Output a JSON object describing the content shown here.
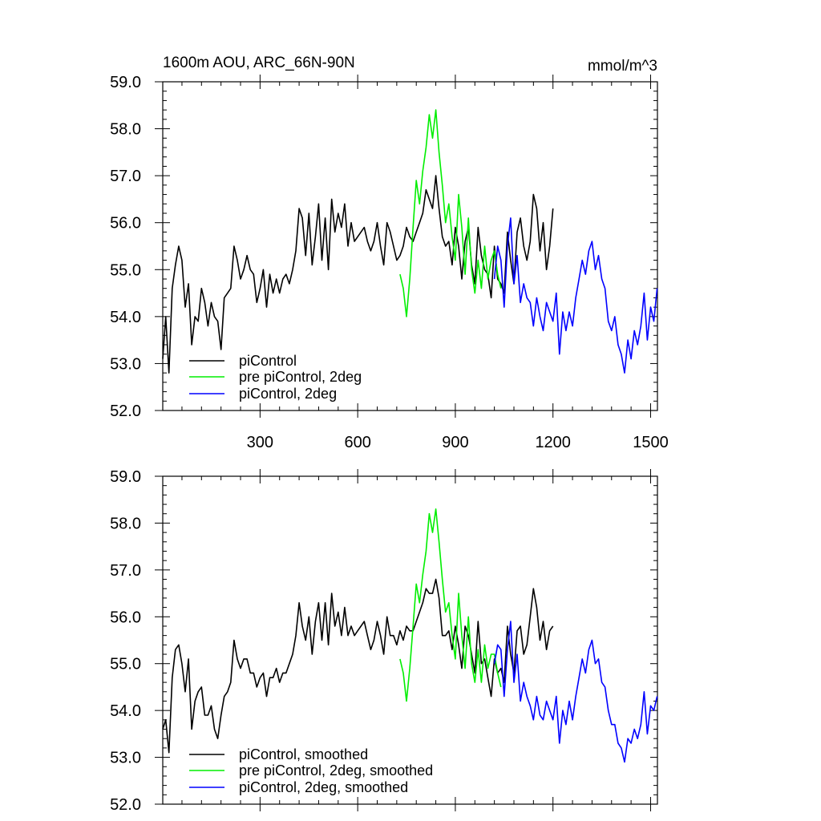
{
  "chart_data": [
    {
      "type": "line",
      "title": "1600m AOU, ARC_66N-90N",
      "units": "mmol/m^3",
      "xlabel": "",
      "ylabel": "",
      "xlim": [
        1,
        1521
      ],
      "ylim": [
        52.0,
        59.0
      ],
      "x_ticks": [
        300,
        600,
        900,
        1200,
        1500
      ],
      "y_ticks": [
        "52.0",
        "53.0",
        "54.0",
        "55.0",
        "56.0",
        "57.0",
        "58.0",
        "59.0"
      ],
      "show_x_tick_labels": true,
      "legend_position": "bottom-left",
      "series": [
        {
          "name": "piControl",
          "color": "#000000",
          "x": [
            1,
            10,
            20,
            30,
            40,
            50,
            60,
            70,
            80,
            90,
            100,
            110,
            120,
            130,
            140,
            150,
            160,
            170,
            180,
            190,
            200,
            210,
            220,
            230,
            240,
            250,
            260,
            270,
            280,
            290,
            300,
            310,
            320,
            330,
            340,
            350,
            360,
            370,
            380,
            390,
            400,
            410,
            420,
            430,
            440,
            450,
            460,
            470,
            480,
            490,
            500,
            510,
            520,
            530,
            540,
            550,
            560,
            570,
            580,
            590,
            600,
            610,
            620,
            630,
            640,
            650,
            660,
            670,
            680,
            690,
            700,
            710,
            720,
            730,
            740,
            750,
            760,
            770,
            780,
            790,
            800,
            810,
            820,
            830,
            840,
            850,
            860,
            870,
            880,
            890,
            900,
            910,
            920,
            930,
            940,
            950,
            960,
            970,
            980,
            990,
            1000,
            1010,
            1020,
            1030,
            1040,
            1050,
            1060,
            1070,
            1080,
            1090,
            1100,
            1110,
            1120,
            1130,
            1140,
            1150,
            1160,
            1170,
            1180,
            1190,
            1200
          ],
          "y": [
            53.1,
            54.0,
            52.8,
            54.6,
            55.1,
            55.5,
            55.2,
            54.2,
            54.7,
            53.4,
            54.0,
            53.9,
            54.6,
            54.3,
            53.8,
            54.3,
            54.0,
            53.9,
            53.3,
            54.4,
            54.5,
            54.6,
            55.5,
            55.2,
            54.8,
            55.0,
            55.3,
            55.0,
            54.9,
            54.3,
            54.6,
            55.0,
            54.2,
            54.9,
            54.5,
            54.8,
            54.5,
            54.8,
            54.9,
            54.7,
            55.0,
            55.4,
            56.3,
            56.1,
            55.3,
            56.2,
            55.1,
            55.7,
            56.4,
            55.2,
            56.1,
            55.0,
            56.5,
            55.8,
            56.2,
            55.9,
            56.4,
            55.5,
            56.0,
            55.6,
            55.7,
            55.8,
            55.9,
            55.6,
            55.4,
            55.6,
            56.0,
            55.5,
            55.1,
            56.0,
            55.8,
            55.5,
            55.2,
            55.3,
            55.5,
            55.9,
            55.7,
            55.6,
            55.8,
            56.0,
            56.2,
            56.7,
            56.5,
            56.3,
            57.0,
            56.3,
            55.7,
            55.5,
            55.6,
            55.1,
            55.9,
            55.5,
            54.8,
            55.6,
            55.9,
            55.1,
            54.7,
            55.9,
            55.3,
            55.0,
            54.9,
            54.4,
            55.5,
            54.8,
            54.7,
            54.5,
            55.8,
            55.2,
            54.7,
            55.8,
            56.1,
            55.5,
            55.2,
            55.6,
            56.6,
            56.3,
            55.4,
            56.0,
            55.0,
            55.5,
            56.3
          ]
        },
        {
          "name": "pre piControl, 2deg",
          "color": "#00ee00",
          "x": [
            730,
            740,
            750,
            760,
            770,
            780,
            790,
            800,
            810,
            820,
            830,
            840,
            850,
            860,
            870,
            880,
            890,
            900,
            910,
            920,
            930,
            940,
            950,
            960,
            970,
            980,
            990,
            1000,
            1010,
            1020,
            1030,
            1040
          ],
          "y": [
            54.9,
            54.6,
            54.0,
            54.8,
            55.9,
            56.9,
            56.4,
            57.1,
            57.6,
            58.3,
            57.8,
            58.4,
            57.5,
            56.8,
            56.0,
            56.4,
            55.7,
            55.2,
            56.6,
            55.9,
            54.9,
            56.1,
            55.0,
            54.5,
            55.2,
            54.6,
            55.5,
            54.8,
            55.2,
            55.4,
            54.9,
            54.6
          ]
        },
        {
          "name": "piControl, 2deg",
          "color": "#0000ff",
          "x": [
            1020,
            1030,
            1040,
            1050,
            1060,
            1070,
            1080,
            1090,
            1100,
            1110,
            1120,
            1130,
            1140,
            1150,
            1160,
            1170,
            1180,
            1190,
            1200,
            1210,
            1220,
            1230,
            1240,
            1250,
            1260,
            1270,
            1280,
            1290,
            1300,
            1310,
            1320,
            1330,
            1340,
            1350,
            1360,
            1370,
            1380,
            1390,
            1400,
            1410,
            1420,
            1430,
            1440,
            1450,
            1460,
            1470,
            1480,
            1490,
            1500,
            1510,
            1520
          ],
          "y": [
            54.8,
            55.5,
            55.2,
            54.2,
            55.5,
            56.1,
            54.7,
            55.3,
            54.3,
            54.7,
            54.4,
            54.3,
            53.8,
            54.4,
            54.0,
            53.7,
            54.3,
            54.1,
            53.9,
            54.5,
            53.2,
            54.1,
            53.7,
            54.1,
            53.8,
            54.4,
            54.8,
            55.2,
            54.9,
            55.4,
            55.6,
            55.0,
            55.3,
            54.8,
            54.6,
            53.9,
            53.7,
            54.0,
            53.4,
            53.2,
            52.8,
            53.5,
            53.1,
            53.7,
            53.4,
            53.8,
            54.5,
            53.5,
            54.2,
            53.9,
            54.6
          ]
        }
      ]
    },
    {
      "type": "line",
      "title": "",
      "xlabel": "",
      "ylabel": "",
      "xlim": [
        1,
        1521
      ],
      "ylim": [
        52.0,
        59.0
      ],
      "x_ticks": [
        300,
        600,
        900,
        1200,
        1500
      ],
      "y_ticks": [
        "52.0",
        "53.0",
        "54.0",
        "55.0",
        "56.0",
        "57.0",
        "58.0",
        "59.0"
      ],
      "show_x_tick_labels": false,
      "legend_position": "bottom-left",
      "series": [
        {
          "name": "piControl, smoothed",
          "color": "#000000",
          "x": [
            1,
            10,
            20,
            30,
            40,
            50,
            60,
            70,
            80,
            90,
            100,
            110,
            120,
            130,
            140,
            150,
            160,
            170,
            180,
            190,
            200,
            210,
            220,
            230,
            240,
            250,
            260,
            270,
            280,
            290,
            300,
            310,
            320,
            330,
            340,
            350,
            360,
            370,
            380,
            390,
            400,
            410,
            420,
            430,
            440,
            450,
            460,
            470,
            480,
            490,
            500,
            510,
            520,
            530,
            540,
            550,
            560,
            570,
            580,
            590,
            600,
            610,
            620,
            630,
            640,
            650,
            660,
            670,
            680,
            690,
            700,
            710,
            720,
            730,
            740,
            750,
            760,
            770,
            780,
            790,
            800,
            810,
            820,
            830,
            840,
            850,
            860,
            870,
            880,
            890,
            900,
            910,
            920,
            930,
            940,
            950,
            960,
            970,
            980,
            990,
            1000,
            1010,
            1020,
            1030,
            1040,
            1050,
            1060,
            1070,
            1080,
            1090,
            1100,
            1110,
            1120,
            1130,
            1140,
            1150,
            1160,
            1170,
            1180,
            1190,
            1200
          ],
          "y": [
            53.6,
            53.8,
            53.1,
            54.7,
            55.3,
            55.4,
            55.0,
            54.4,
            55.1,
            53.6,
            54.2,
            54.4,
            54.5,
            53.9,
            53.9,
            54.1,
            53.6,
            53.4,
            53.9,
            54.3,
            54.4,
            54.6,
            55.5,
            55.1,
            54.9,
            55.1,
            55.1,
            54.8,
            54.8,
            54.5,
            54.7,
            54.8,
            54.3,
            54.7,
            54.7,
            54.9,
            54.6,
            54.8,
            54.8,
            55.0,
            55.2,
            55.6,
            56.3,
            55.8,
            55.5,
            56.0,
            55.2,
            55.9,
            56.3,
            55.5,
            56.3,
            55.4,
            56.5,
            55.8,
            56.1,
            55.6,
            56.2,
            55.6,
            55.8,
            55.6,
            55.7,
            55.8,
            55.9,
            55.6,
            55.3,
            55.5,
            55.9,
            55.6,
            55.2,
            56.0,
            55.6,
            55.6,
            55.4,
            55.7,
            55.5,
            55.8,
            55.7,
            55.7,
            55.9,
            56.1,
            56.3,
            56.6,
            56.5,
            56.5,
            56.8,
            56.4,
            55.6,
            55.6,
            55.7,
            55.3,
            55.8,
            55.4,
            54.9,
            55.8,
            55.6,
            55.2,
            54.8,
            55.9,
            55.0,
            55.1,
            54.7,
            54.3,
            55.1,
            54.8,
            54.9,
            54.6,
            55.8,
            55.2,
            54.8,
            55.7,
            55.8,
            55.2,
            55.4,
            56.0,
            56.6,
            56.2,
            55.5,
            55.9,
            55.3,
            55.7,
            55.8
          ]
        },
        {
          "name": "pre piControl, 2deg, smoothed",
          "color": "#00ee00",
          "x": [
            730,
            740,
            750,
            760,
            770,
            780,
            790,
            800,
            810,
            820,
            830,
            840,
            850,
            860,
            870,
            880,
            890,
            900,
            910,
            920,
            930,
            940,
            950,
            960,
            970,
            980,
            990,
            1000,
            1010,
            1020,
            1030,
            1040
          ],
          "y": [
            55.1,
            54.8,
            54.2,
            54.9,
            55.8,
            56.7,
            56.3,
            56.9,
            57.4,
            58.2,
            57.8,
            58.3,
            57.6,
            56.8,
            56.1,
            56.3,
            55.6,
            55.1,
            56.5,
            55.6,
            54.9,
            56.0,
            55.0,
            54.6,
            55.3,
            54.6,
            55.4,
            54.9,
            55.2,
            55.2,
            54.8,
            54.5
          ]
        },
        {
          "name": "piControl, 2deg, smoothed",
          "color": "#0000ff",
          "x": [
            1020,
            1030,
            1040,
            1050,
            1060,
            1070,
            1080,
            1090,
            1100,
            1110,
            1120,
            1130,
            1140,
            1150,
            1160,
            1170,
            1180,
            1190,
            1200,
            1210,
            1220,
            1230,
            1240,
            1250,
            1260,
            1270,
            1280,
            1290,
            1300,
            1310,
            1320,
            1330,
            1340,
            1350,
            1360,
            1370,
            1380,
            1390,
            1400,
            1410,
            1420,
            1430,
            1440,
            1450,
            1460,
            1470,
            1480,
            1490,
            1500,
            1510,
            1520
          ],
          "y": [
            55.0,
            55.4,
            55.3,
            54.3,
            55.3,
            55.9,
            54.6,
            55.2,
            54.2,
            54.6,
            54.3,
            54.1,
            53.8,
            54.3,
            53.9,
            53.8,
            54.2,
            54.0,
            53.8,
            54.3,
            53.3,
            54.0,
            53.7,
            54.2,
            53.8,
            54.3,
            54.7,
            55.1,
            54.8,
            55.3,
            55.5,
            55.0,
            55.1,
            54.6,
            54.5,
            54.0,
            53.7,
            53.7,
            53.3,
            53.2,
            52.9,
            53.4,
            53.3,
            53.6,
            53.4,
            53.7,
            54.4,
            53.5,
            54.1,
            54.0,
            54.3
          ]
        }
      ]
    }
  ]
}
